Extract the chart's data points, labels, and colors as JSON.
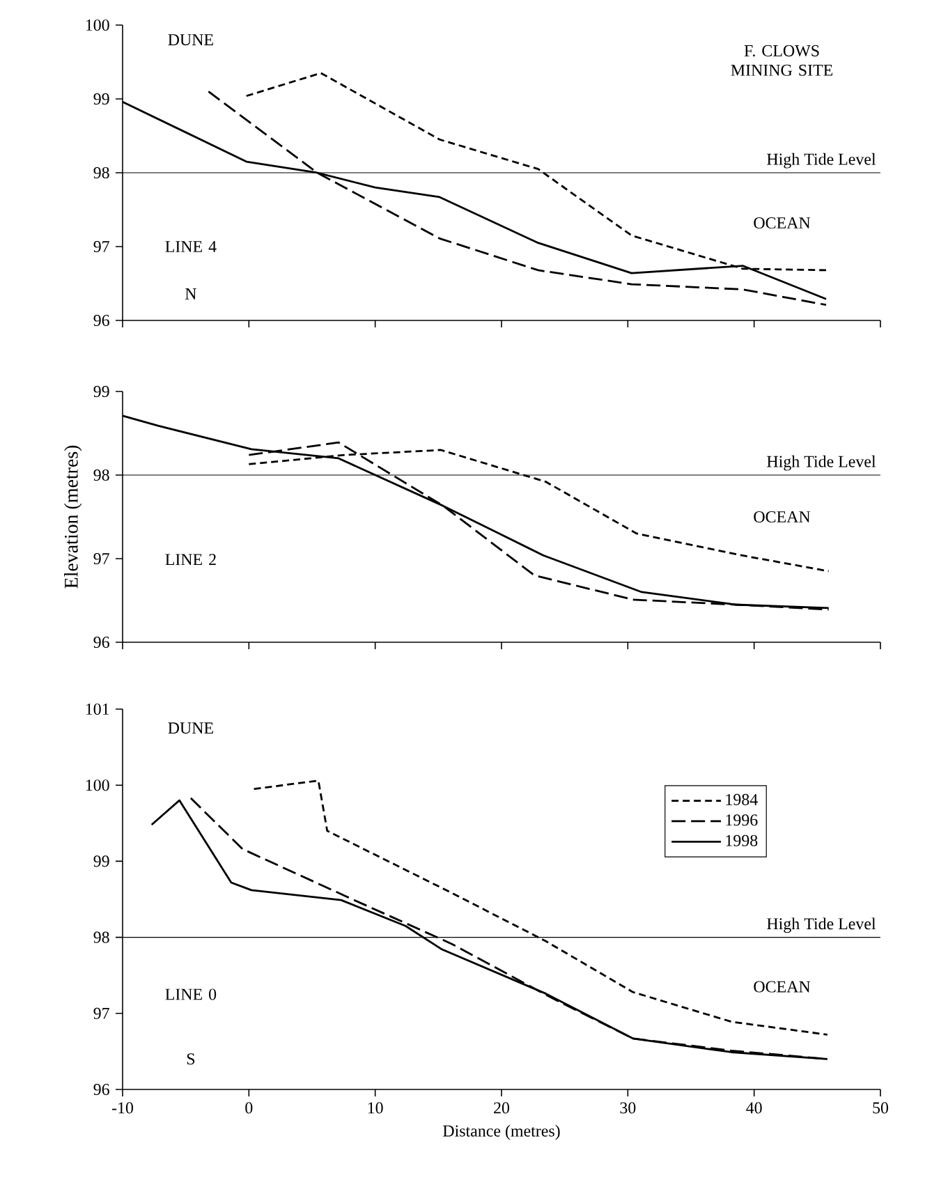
{
  "chart_data": [
    {
      "type": "line",
      "xlim": [
        -10,
        50
      ],
      "xticks": [
        -10,
        0,
        10,
        20,
        30,
        40,
        50
      ],
      "ylim": [
        96,
        100
      ],
      "yticks": [
        96,
        97,
        98,
        99,
        100
      ],
      "tick_labels": "y",
      "annotations": [
        "DUNE",
        "F. CLOWS MINING SITE",
        "LINE 4",
        "N",
        "OCEAN"
      ],
      "ref_lines": [
        {
          "axis": "y",
          "value": 98,
          "label": "High Tide Level",
          "color": "#000000"
        }
      ],
      "series": [
        {
          "color": "#000000",
          "line_style": "dashed",
          "x": [
            -0.2,
            5.7,
            15.1,
            22.9,
            30.3,
            39.1,
            45.7
          ],
          "values": [
            99.04,
            99.35,
            98.45,
            98.05,
            97.15,
            96.7,
            96.68
          ]
        },
        {
          "color": "#000000",
          "line_style": "dashed",
          "x": [
            -3.2,
            5.4,
            15.1,
            22.9,
            30.3,
            39.1,
            45.7
          ],
          "values": [
            99.1,
            98.0,
            97.11,
            96.68,
            96.49,
            96.42,
            96.21
          ]
        },
        {
          "color": "#000000",
          "line_style": "solid",
          "x": [
            -10,
            -0.2,
            5.4,
            10,
            15.1,
            22.9,
            30.3,
            39.1,
            45.7
          ],
          "values": [
            98.96,
            98.15,
            98.0,
            97.8,
            97.67,
            97.05,
            96.64,
            96.74,
            96.29
          ]
        }
      ]
    },
    {
      "type": "line",
      "xlim": [
        -10,
        50
      ],
      "xticks": [
        -10,
        0,
        10,
        20,
        30,
        40,
        50
      ],
      "ylim": [
        96,
        99
      ],
      "yticks": [
        96,
        97,
        98,
        99
      ],
      "tick_labels": "y",
      "ylabel": "Elevation (metres)",
      "annotations": [
        "LINE 2",
        "OCEAN"
      ],
      "ref_lines": [
        {
          "axis": "y",
          "value": 98,
          "label": "High Tide Level",
          "color": "#000000"
        }
      ],
      "series": [
        {
          "color": "#000000",
          "line_style": "dashed",
          "x": [
            0,
            7.6,
            15.2,
            23.5,
            30.7,
            39,
            45.9
          ],
          "values": [
            98.13,
            98.24,
            98.3,
            97.92,
            97.3,
            97.04,
            96.85
          ]
        },
        {
          "color": "#000000",
          "line_style": "dashed",
          "x": [
            0,
            7.1,
            15.4,
            22.6,
            30.4,
            38.5,
            45.9
          ],
          "values": [
            98.24,
            98.39,
            97.63,
            96.8,
            96.51,
            96.45,
            96.39
          ]
        },
        {
          "color": "#000000",
          "line_style": "solid",
          "x": [
            -10,
            -7.2,
            0.2,
            7.1,
            15.4,
            23.3,
            31.1,
            38.5,
            45.9
          ],
          "values": [
            98.71,
            98.59,
            98.31,
            98.2,
            97.63,
            97.04,
            96.6,
            96.45,
            96.41
          ]
        }
      ]
    },
    {
      "type": "line",
      "xlim": [
        -10,
        50
      ],
      "xticks": [
        -10,
        0,
        10,
        20,
        30,
        40,
        50
      ],
      "ylim": [
        96,
        101
      ],
      "yticks": [
        96,
        97,
        98,
        99,
        100,
        101
      ],
      "xlabel": "Distance (metres)",
      "legend": "top right",
      "annotations": [
        "DUNE",
        "LINE 0",
        "S",
        "OCEAN"
      ],
      "ref_lines": [
        {
          "axis": "y",
          "value": 98,
          "label": "High Tide Level",
          "color": "#000000"
        }
      ],
      "series": [
        {
          "name": "1984",
          "color": "#000000",
          "line_style": "dashed",
          "x": [
            0.4,
            5.5,
            6.2,
            16.1,
            23.5,
            30.4,
            38.2,
            45.8
          ],
          "values": [
            99.95,
            100.06,
            99.4,
            98.58,
            97.95,
            97.28,
            96.89,
            96.72
          ]
        },
        {
          "name": "1996",
          "color": "#000000",
          "line_style": "dashed",
          "x": [
            -4.6,
            -0.5,
            7.8,
            16.1,
            23.9,
            30.4,
            38.2,
            45.8
          ],
          "values": [
            99.83,
            99.16,
            98.53,
            97.91,
            97.21,
            96.67,
            96.51,
            96.4
          ]
        },
        {
          "name": "1998",
          "color": "#000000",
          "line_style": "solid",
          "x": [
            -7.7,
            -5.5,
            -1.4,
            0.2,
            7.3,
            12.4,
            15.3,
            23.5,
            30.4,
            38.2,
            45.8
          ],
          "values": [
            99.48,
            99.8,
            98.72,
            98.62,
            98.49,
            98.15,
            97.84,
            97.26,
            96.67,
            96.49,
            96.4
          ]
        }
      ]
    }
  ]
}
